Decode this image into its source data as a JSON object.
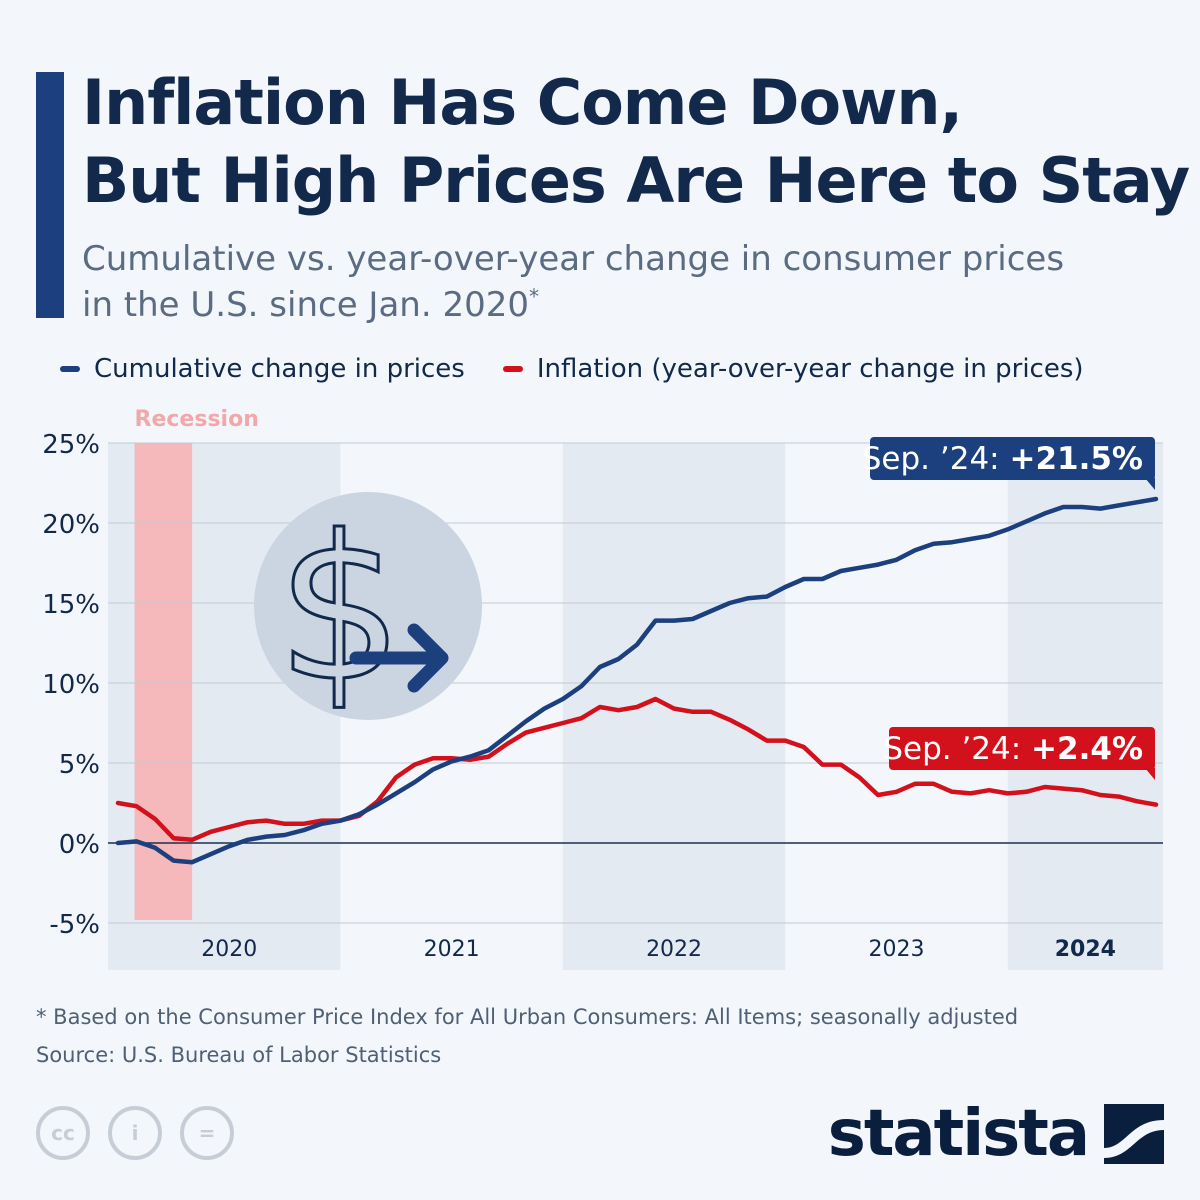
{
  "title": {
    "line1": "Inflation Has Come Down,",
    "line2": "But High Prices Are Here to Stay"
  },
  "subtitle": {
    "line1": "Cumulative vs. year-over-year change in consumer prices",
    "line2": "in the U.S. since Jan. 2020",
    "marker": "*"
  },
  "legend": [
    {
      "label": "Cumulative change in prices",
      "color": "#1c3f7e"
    },
    {
      "label": "Inflation (year-over-year change in prices)",
      "color": "#d3111c"
    }
  ],
  "chart_data": {
    "type": "line",
    "title": "Cumulative vs. year-over-year change in consumer prices in the U.S. since Jan. 2020",
    "x_range_months": [
      0,
      56
    ],
    "ylim": [
      -5,
      25
    ],
    "yticks": [
      -5,
      0,
      5,
      10,
      15,
      20,
      25
    ],
    "ytick_labels": [
      "-5%",
      "0%",
      "5%",
      "10%",
      "15%",
      "20%",
      "25%"
    ],
    "year_labels": [
      {
        "label": "2020",
        "start": 0,
        "end": 12,
        "bold": false
      },
      {
        "label": "2021",
        "start": 12,
        "end": 24,
        "bold": false
      },
      {
        "label": "2022",
        "start": 24,
        "end": 36,
        "bold": false
      },
      {
        "label": "2023",
        "start": 36,
        "end": 48,
        "bold": false
      },
      {
        "label": "2024",
        "start": 48,
        "end": 57,
        "bold": true
      }
    ],
    "recession": {
      "label": "Recession",
      "start": 1,
      "end": 4
    },
    "series": [
      {
        "name": "Cumulative change in prices",
        "color": "#1c3f7e",
        "values": [
          0,
          0.1,
          -0.3,
          -1.1,
          -1.2,
          -0.7,
          -0.2,
          0.2,
          0.4,
          0.5,
          0.8,
          1.2,
          1.4,
          1.8,
          2.4,
          3.1,
          3.8,
          4.6,
          5.1,
          5.4,
          5.8,
          6.7,
          7.6,
          8.4,
          9.0,
          9.8,
          11.0,
          11.5,
          12.4,
          13.9,
          13.9,
          14.0,
          14.5,
          15.0,
          15.3,
          15.4,
          16.0,
          16.5,
          16.5,
          17.0,
          17.2,
          17.4,
          17.7,
          18.3,
          18.7,
          18.8,
          19.0,
          19.2,
          19.6,
          20.1,
          20.6,
          21.0,
          21.0,
          20.9,
          21.1,
          21.3,
          21.5
        ],
        "end_label": "Sep. ’24: ",
        "end_value": "+21.5%"
      },
      {
        "name": "Inflation (year-over-year change in prices)",
        "color": "#d3111c",
        "values": [
          2.5,
          2.3,
          1.5,
          0.3,
          0.2,
          0.7,
          1.0,
          1.3,
          1.4,
          1.2,
          1.2,
          1.4,
          1.4,
          1.7,
          2.6,
          4.1,
          4.9,
          5.3,
          5.3,
          5.2,
          5.4,
          6.2,
          6.9,
          7.2,
          7.5,
          7.8,
          8.5,
          8.3,
          8.5,
          9.0,
          8.4,
          8.2,
          8.2,
          7.7,
          7.1,
          6.4,
          6.4,
          6.0,
          4.9,
          4.9,
          4.1,
          3.0,
          3.2,
          3.7,
          3.7,
          3.2,
          3.1,
          3.3,
          3.1,
          3.2,
          3.5,
          3.4,
          3.3,
          3.0,
          2.9,
          2.6,
          2.4
        ],
        "end_label": "Sep. ’24: ",
        "end_value": "+2.4%"
      }
    ]
  },
  "footnote": {
    "note": "* Based on the Consumer Price Index for All Urban Consumers: All Items; seasonally adjusted",
    "source": "Source: U.S. Bureau of Labor Statistics"
  },
  "footer": {
    "brand": "statista",
    "license_icons": [
      "cc",
      "i",
      "="
    ]
  }
}
